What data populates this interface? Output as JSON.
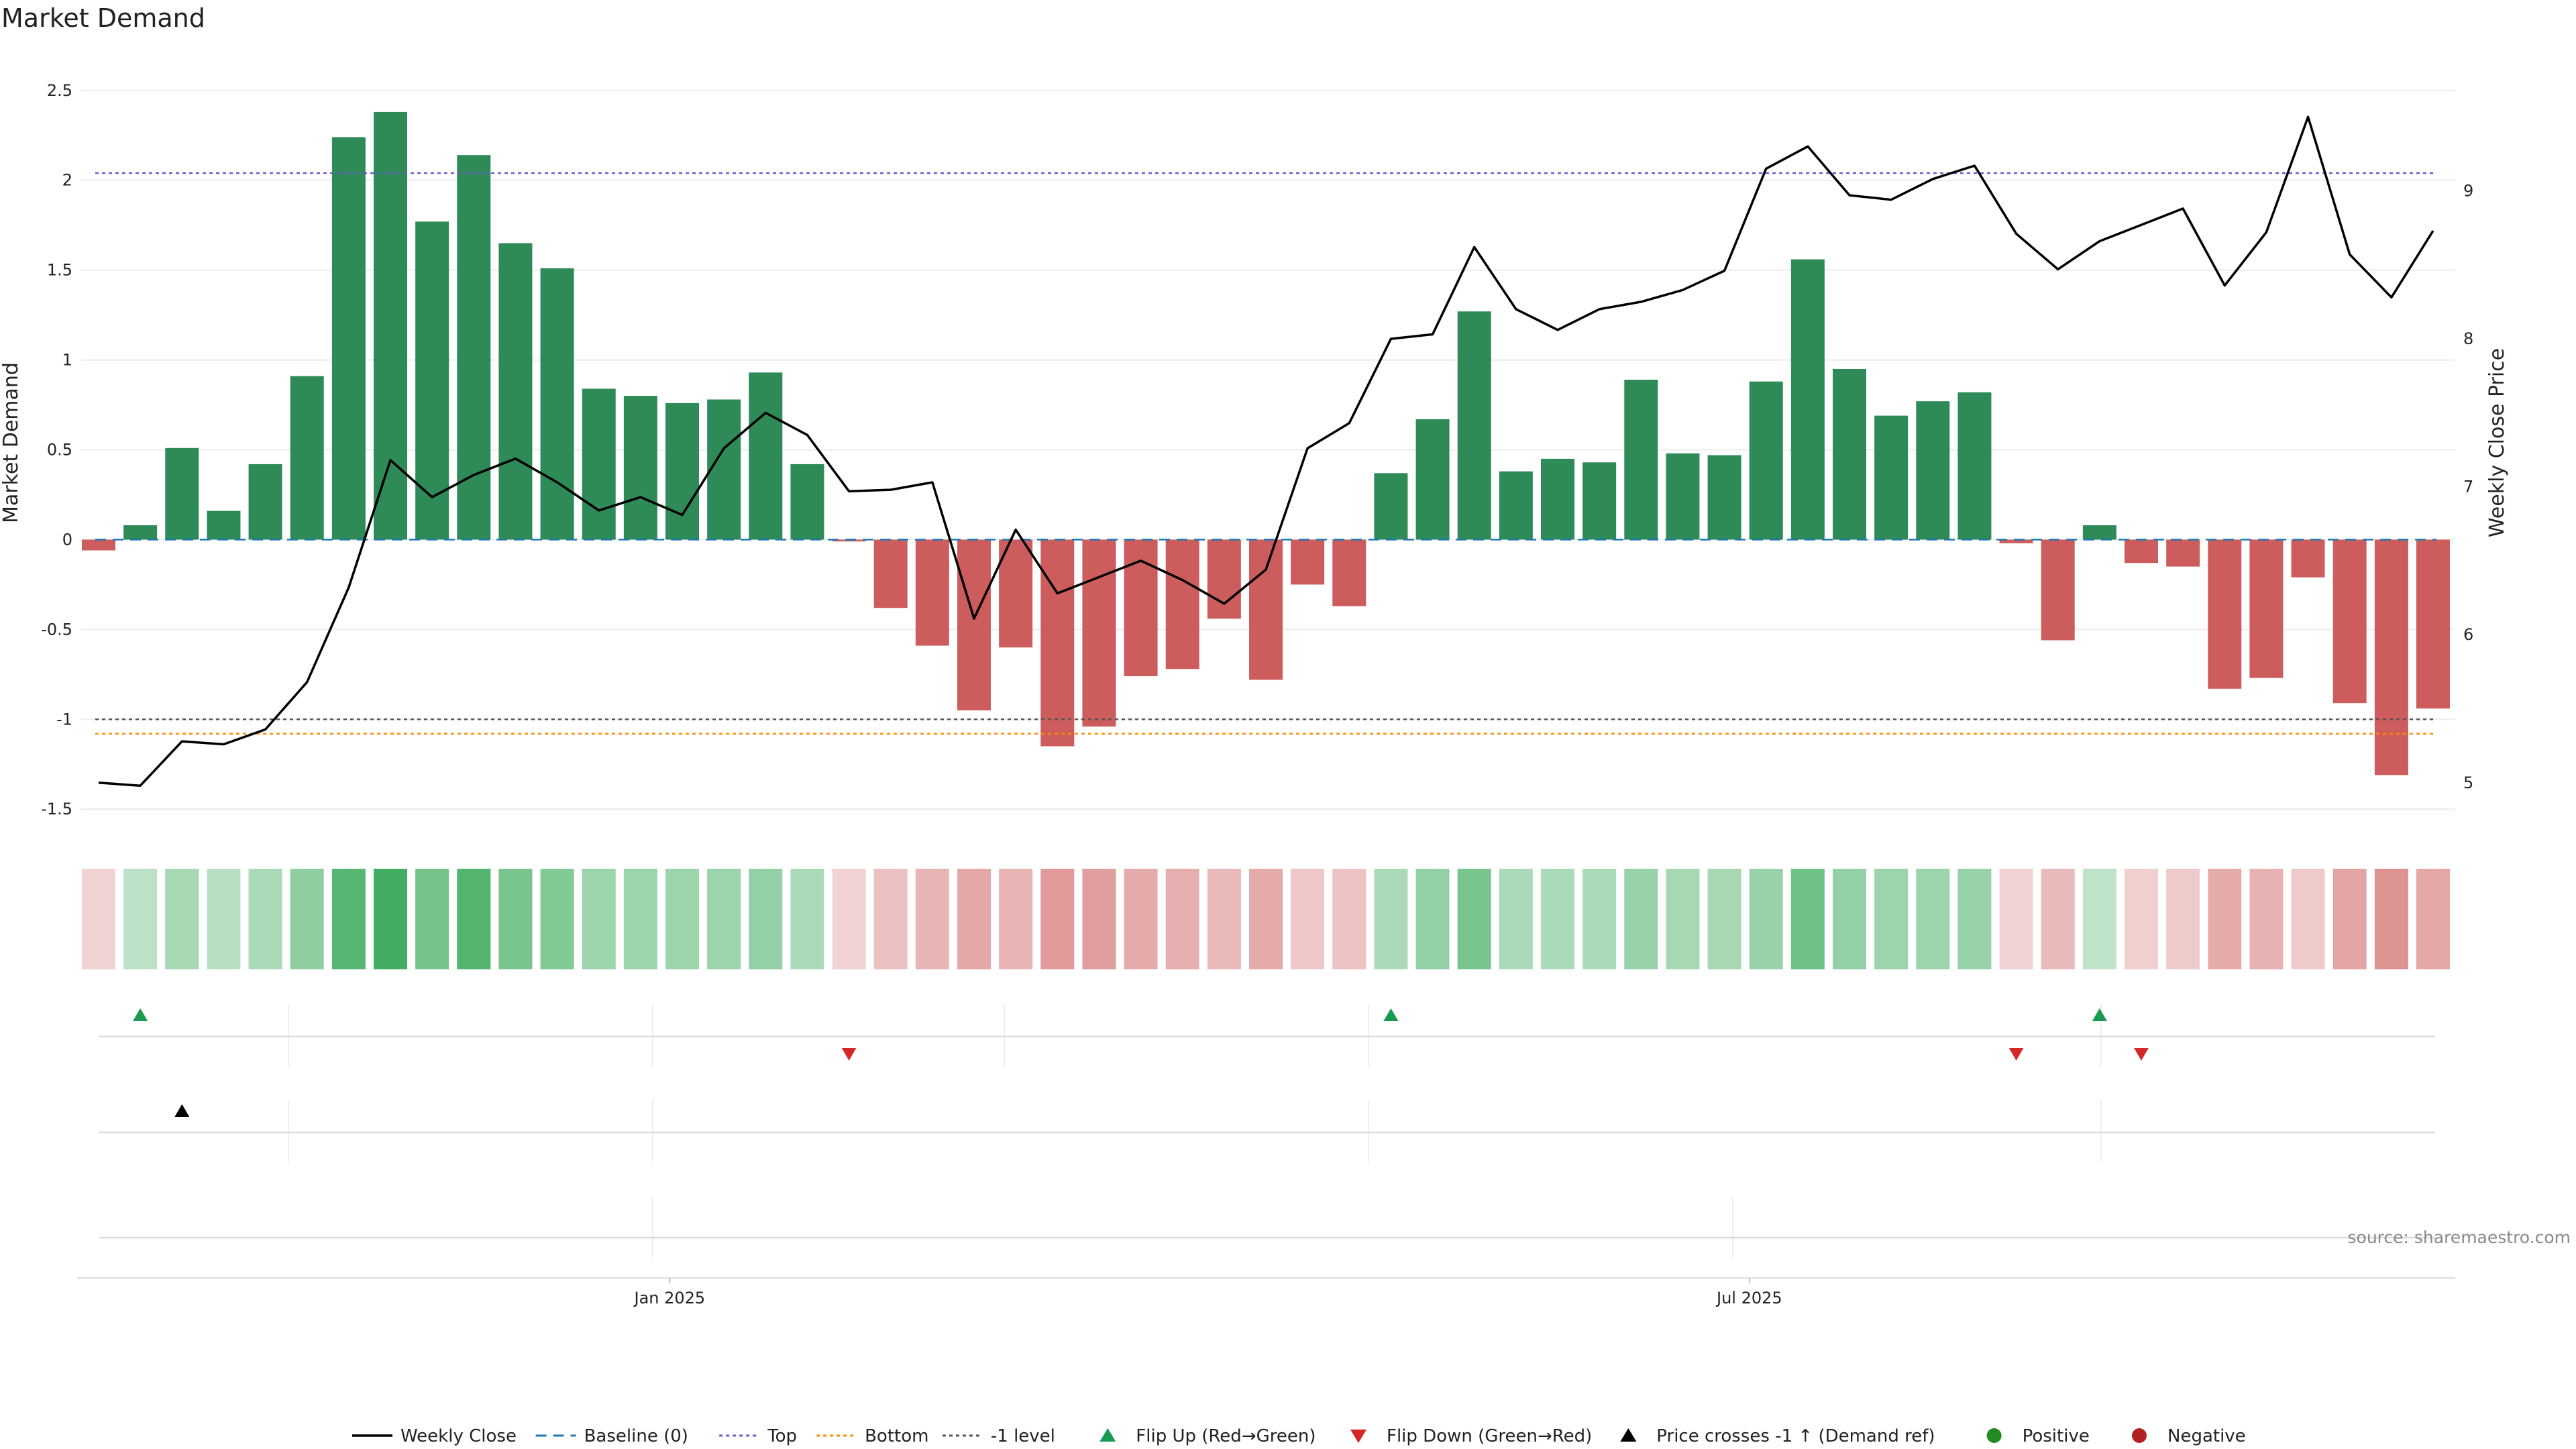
{
  "chart_data": {
    "type": "bar",
    "title": "Market Demand",
    "ylabel": "Market Demand",
    "y2label": "Weekly Close Price",
    "ylim": [
      -1.6,
      2.6
    ],
    "y2lim": [
      4.7,
      9.8
    ],
    "yticks": [
      -1.5,
      -1,
      -0.5,
      0,
      0.5,
      1,
      1.5,
      2,
      2.5
    ],
    "ytick_labels": [
      "-1.5",
      "-1",
      "-0.5",
      "0",
      "0.5",
      "1",
      "1.5",
      "2",
      "2.5"
    ],
    "y2ticks": [
      5,
      6,
      7,
      8,
      9
    ],
    "y2tick_labels": [
      "5",
      "6",
      "7",
      "8",
      "9"
    ],
    "x_tick_labels": [
      {
        "label": "Jan 2025",
        "week_index": 13.7
      },
      {
        "label": "Jul 2025",
        "week_index": 39.6
      }
    ],
    "grid": true,
    "legend_position": "bottom-center",
    "source": "source: sharemaestro.com",
    "colors": {
      "positive": "#2e8b57",
      "negative": "#cd5c5c",
      "price_line": "#000000",
      "baseline": "#1f77b4",
      "top": "#6a5acd",
      "bottom": "#ff8c00",
      "minus_one": "#555555",
      "flip_up": "#1a9a50",
      "flip_down": "#d62728",
      "cross": "#000000",
      "legend_positive": "#228b22",
      "legend_negative": "#b22222"
    },
    "reference_lines": {
      "baseline": 0,
      "top": 2.04,
      "bottom": -1.08,
      "minus_one": -1.0
    },
    "series": [
      {
        "name": "Market Demand",
        "values": [
          -0.06,
          0.08,
          0.51,
          0.16,
          0.42,
          0.91,
          2.24,
          2.38,
          1.77,
          2.14,
          1.65,
          1.51,
          0.84,
          0.8,
          0.76,
          0.78,
          0.93,
          0.42,
          -0.01,
          -0.38,
          -0.59,
          -0.95,
          -0.6,
          -1.15,
          -1.04,
          -0.76,
          -0.72,
          -0.44,
          -0.78,
          -0.25,
          -0.37,
          0.37,
          0.67,
          1.27,
          0.38,
          0.45,
          0.43,
          0.89,
          0.48,
          0.47,
          0.88,
          1.56,
          0.95,
          0.69,
          0.77,
          0.82,
          -0.02,
          -0.56,
          0.08,
          -0.13,
          -0.15,
          -0.83,
          -0.77,
          -0.21,
          -0.91,
          -1.31,
          -0.94
        ]
      },
      {
        "name": "Weekly Close",
        "values": [
          5.0,
          4.98,
          5.28,
          5.26,
          5.36,
          5.68,
          6.32,
          7.18,
          6.93,
          7.08,
          7.19,
          7.03,
          6.84,
          6.93,
          6.81,
          7.26,
          7.5,
          7.35,
          6.97,
          6.98,
          7.03,
          6.11,
          6.71,
          6.28,
          6.39,
          6.5,
          6.37,
          6.21,
          6.44,
          7.26,
          7.43,
          8.0,
          8.03,
          8.62,
          8.2,
          8.06,
          8.2,
          8.25,
          8.33,
          8.46,
          9.15,
          9.3,
          8.97,
          8.94,
          9.08,
          9.17,
          8.71,
          8.47,
          8.66,
          8.77,
          8.88,
          8.36,
          8.72,
          9.5,
          8.57,
          8.28,
          8.73
        ]
      }
    ],
    "intensity": [
      0.05,
      0.1,
      0.2,
      0.12,
      0.18,
      0.3,
      0.55,
      0.65,
      0.42,
      0.58,
      0.4,
      0.36,
      0.24,
      0.24,
      0.24,
      0.24,
      0.28,
      0.18,
      0.05,
      0.15,
      0.22,
      0.3,
      0.22,
      0.38,
      0.36,
      0.28,
      0.26,
      0.2,
      0.28,
      0.12,
      0.14,
      0.18,
      0.28,
      0.4,
      0.18,
      0.18,
      0.18,
      0.26,
      0.2,
      0.2,
      0.26,
      0.44,
      0.28,
      0.24,
      0.24,
      0.26,
      0.05,
      0.2,
      0.08,
      0.07,
      0.1,
      0.28,
      0.24,
      0.1,
      0.32,
      0.42,
      0.3
    ],
    "flip_up_weeks": [
      1,
      31,
      48
    ],
    "flip_down_weeks": [
      18,
      46,
      49
    ],
    "price_cross_weeks": [
      2
    ],
    "legend": [
      {
        "label": "Weekly Close",
        "kind": "solid-line",
        "color": "#000000"
      },
      {
        "label": "Baseline (0)",
        "kind": "dashed-line",
        "color": "#1f77b4"
      },
      {
        "label": "Top",
        "kind": "dotted-line",
        "color": "#6a5acd"
      },
      {
        "label": "Bottom",
        "kind": "dotted-line",
        "color": "#ff8c00"
      },
      {
        "label": "-1 level",
        "kind": "dotted-line",
        "color": "#555555"
      },
      {
        "label": "Flip Up (Red→Green)",
        "kind": "triangle-up",
        "color": "#1a9a50"
      },
      {
        "label": "Flip Down (Green→Red)",
        "kind": "triangle-down",
        "color": "#d62728"
      },
      {
        "label": "Price crosses -1 ↑ (Demand ref)",
        "kind": "triangle-up",
        "color": "#000000"
      },
      {
        "label": "Positive",
        "kind": "circle",
        "color": "#228b22"
      },
      {
        "label": "Negative",
        "kind": "circle",
        "color": "#b22222"
      }
    ]
  }
}
